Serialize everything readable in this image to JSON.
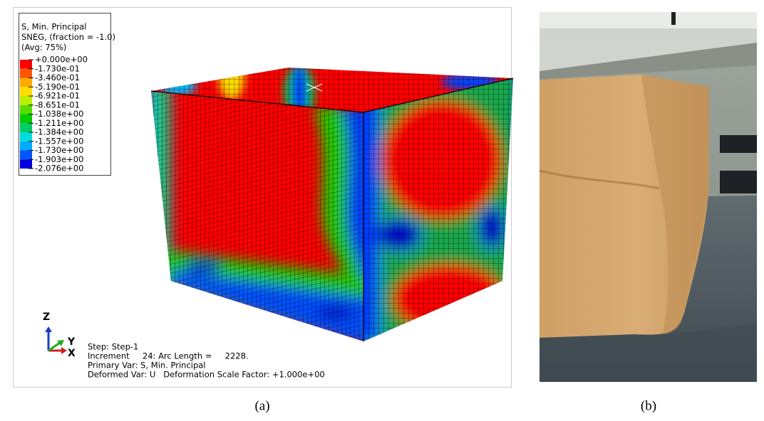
{
  "panel_a": {
    "legend": {
      "title_lines": [
        "S, Min. Principal",
        "SNEG, (fraction = -1.0)",
        "(Avg: 75%)"
      ],
      "values": [
        "+0.000e+00",
        "-1.730e-01",
        "-3.460e-01",
        "-5.190e-01",
        "-6.921e-01",
        "-8.651e-01",
        "-1.038e+00",
        "-1.211e+00",
        "-1.384e+00",
        "-1.557e+00",
        "-1.730e+00",
        "-1.903e+00",
        "-2.076e+00"
      ],
      "colors": [
        "#ff0000",
        "#ff5500",
        "#ffaa00",
        "#ffdd00",
        "#bbee00",
        "#55dd00",
        "#00cc00",
        "#00cc66",
        "#00dddd",
        "#00aaff",
        "#0055ff",
        "#0000dd"
      ]
    },
    "triad": {
      "z": "Z",
      "y": "Y",
      "x": "X"
    },
    "info_lines": [
      "Step: Step-1",
      "Increment     24: Arc Length =     2228.",
      "Primary Var: S, Min. Principal",
      "Deformed Var: U   Deformation Scale Factor: +1.000e+00"
    ],
    "caption": "(a)"
  },
  "panel_b": {
    "caption": "(b)"
  }
}
